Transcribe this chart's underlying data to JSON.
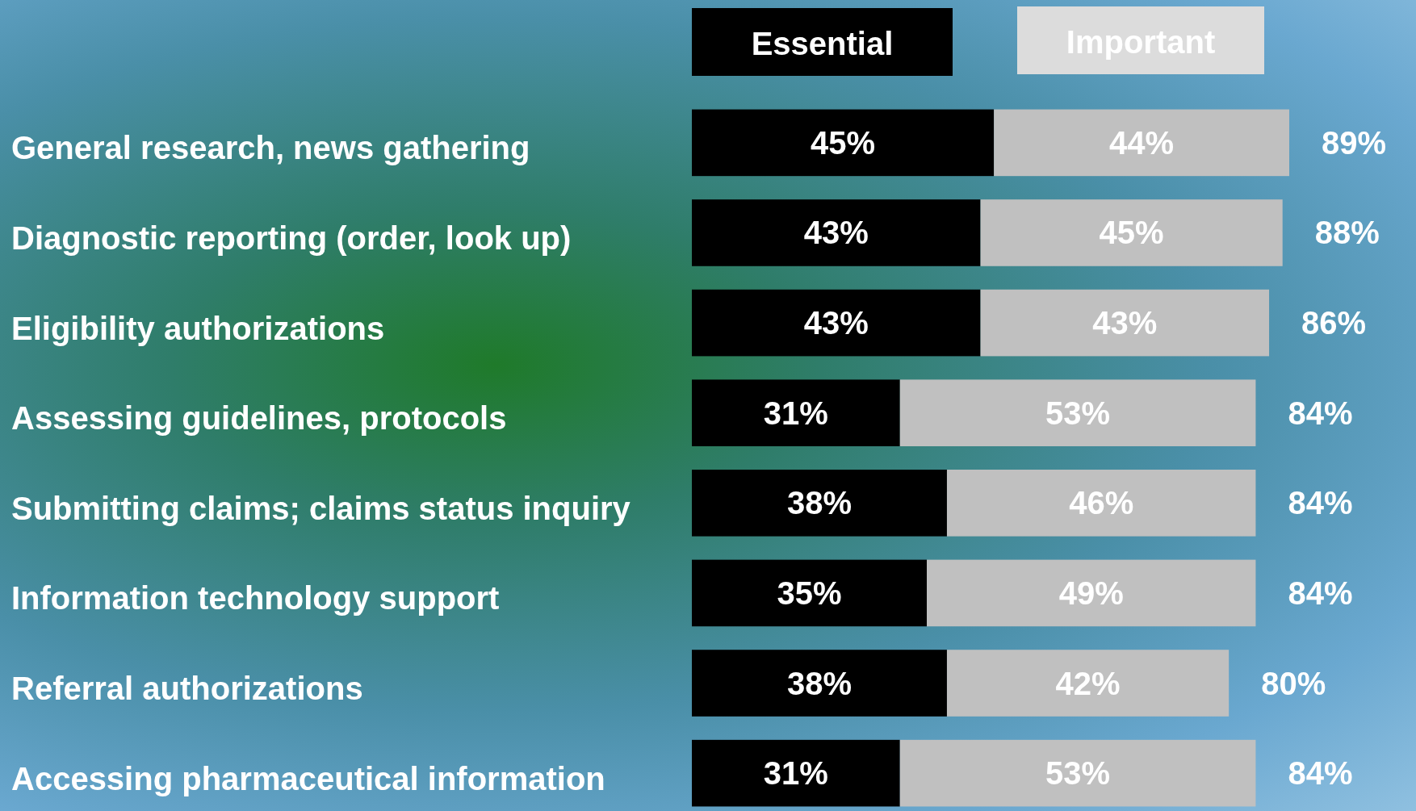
{
  "chart_data": {
    "type": "bar",
    "orientation": "horizontal",
    "stacked": true,
    "legend": "top",
    "categories": [
      "General research, news gathering",
      "Diagnostic reporting (order, look up)",
      "Eligibility authorizations",
      "Assessing guidelines, protocols",
      "Submitting claims; claims status inquiry",
      "Information technology support",
      "Referral authorizations",
      "Accessing pharmaceutical information"
    ],
    "series": [
      {
        "name": "Essential",
        "color": "#000000",
        "values": [
          45,
          43,
          43,
          31,
          38,
          35,
          38,
          31
        ],
        "value_labels": [
          "45%",
          "43%",
          "43%",
          "31%",
          "38%",
          "35%",
          "38%",
          "31%"
        ]
      },
      {
        "name": "Important",
        "color": "#c0c0c0",
        "values": [
          44,
          45,
          43,
          53,
          46,
          49,
          42,
          53
        ],
        "value_labels": [
          "44%",
          "45%",
          "43%",
          "53%",
          "46%",
          "49%",
          "42%",
          "53%"
        ]
      }
    ],
    "totals": [
      "89%",
      "88%",
      "86%",
      "84%",
      "84%",
      "84%",
      "80%",
      "84%"
    ]
  }
}
